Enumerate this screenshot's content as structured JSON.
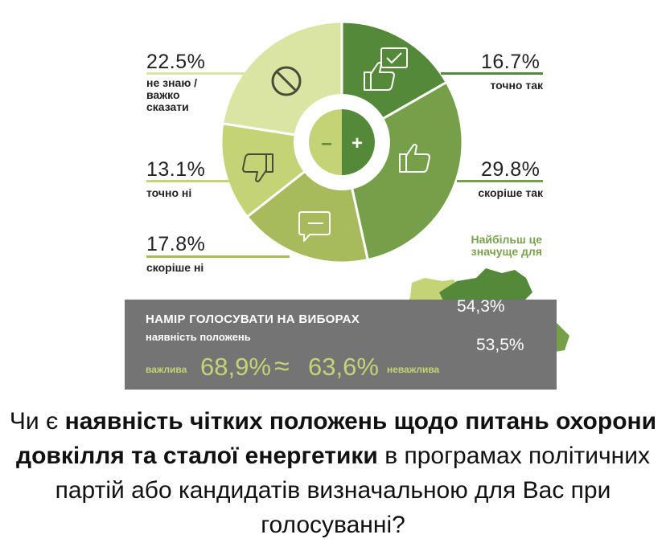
{
  "colors": {
    "dark_green": "#55893a",
    "mid_green": "#75a049",
    "olive": "#a7bb5c",
    "light_olive": "#c4d375",
    "pale_olive": "#dbe5a3",
    "label_green": "#7aa24a",
    "banner_gray": "#747474"
  },
  "chart_data": {
    "type": "pie",
    "categories": [
      "точно так",
      "скоріше так",
      "скоріше ні",
      "точно ні",
      "не знаю / важко сказати"
    ],
    "values": [
      16.7,
      29.8,
      17.8,
      13.1,
      22.5
    ],
    "value_labels": [
      "16.7%",
      "29.8%",
      "17.8%",
      "13.1%",
      "22.5%"
    ],
    "icons": [
      "thumbs-up-check-icon",
      "thumbs-up-icon",
      "speech-bubble-icon",
      "thumbs-down-icon",
      "prohibited-icon"
    ],
    "center_symbols": [
      "–",
      "+"
    ]
  },
  "map": {
    "title": "Найбільш це значуще для",
    "regions": [
      {
        "value": "54,3%"
      },
      {
        "value": "53,5%"
      }
    ]
  },
  "banner": {
    "title": "НАМІР ГОЛОСУВАТИ НА ВИБОРАХ",
    "subtitle": "наявність положень",
    "left_label": "важлива",
    "left_value": "68,9%",
    "approx": "≈",
    "right_value": "63,6%",
    "right_label": "неважлива"
  },
  "question": {
    "part1": "Чи є ",
    "bold1": "наявність чітких положень щодо питань охорони довкілля та сталої енергетики",
    "part2": " в програмах політичних партій або кандидатів визначальною для Вас при голосуванні?"
  }
}
